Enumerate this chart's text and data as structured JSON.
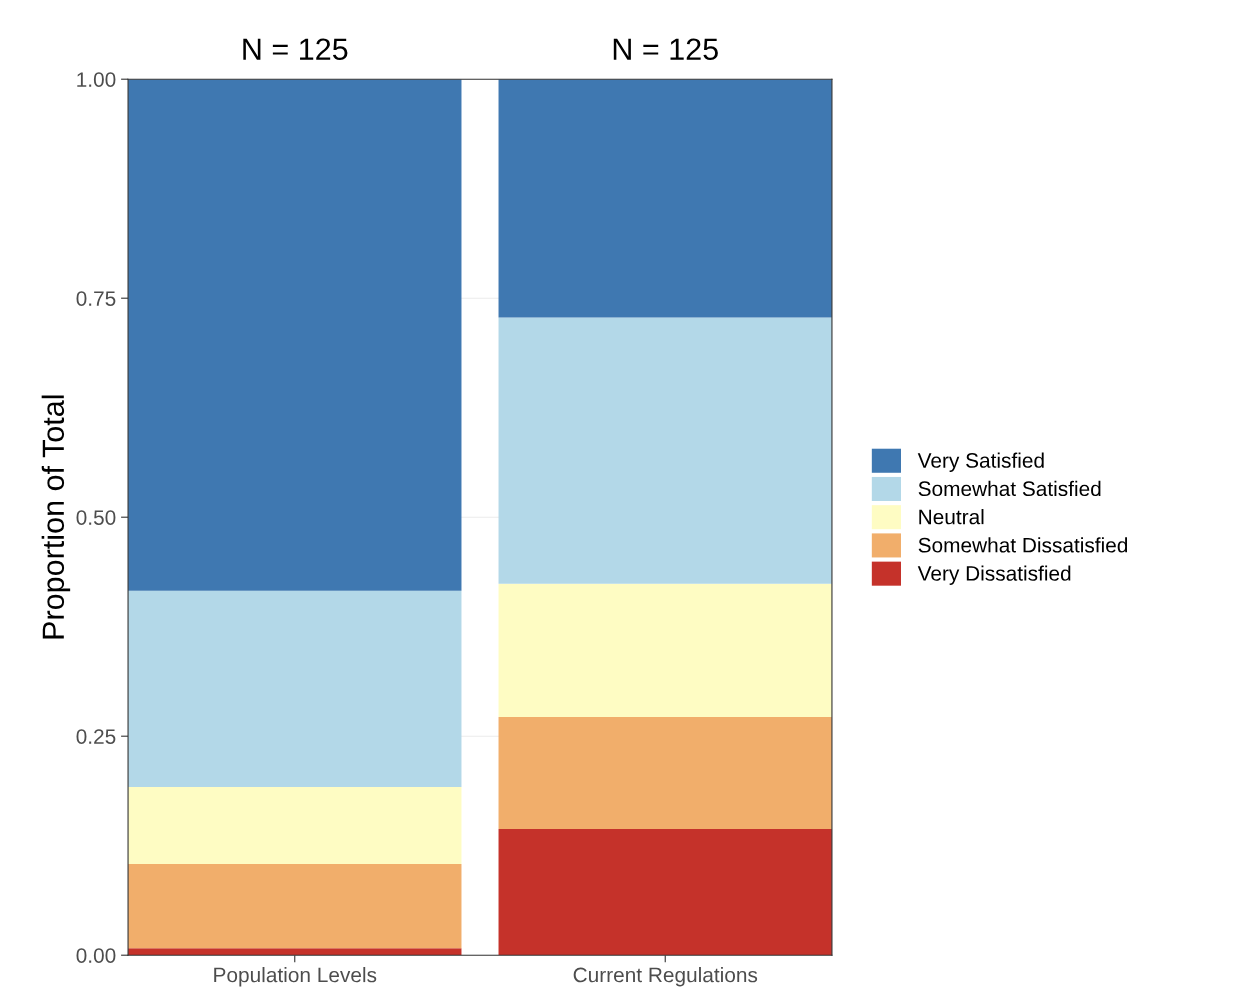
{
  "chart_data": {
    "type": "bar",
    "stacked": true,
    "ylabel": "Proportion of Total",
    "categories": [
      "Population Levels",
      "Current Regulations"
    ],
    "series": [
      {
        "name": "Very Dissatisfied",
        "color": "#c5322a",
        "values": [
          0.008,
          0.144
        ]
      },
      {
        "name": "Somewhat Dissatisfied",
        "color": "#f1ae6b",
        "values": [
          0.096,
          0.128
        ]
      },
      {
        "name": "Neutral",
        "color": "#fefcc3",
        "values": [
          0.088,
          0.152
        ]
      },
      {
        "name": "Somewhat Satisfied",
        "color": "#b3d8e8",
        "values": [
          0.224,
          0.304
        ]
      },
      {
        "name": "Very Satisfied",
        "color": "#3f78b1",
        "values": [
          0.584,
          0.272
        ]
      }
    ],
    "annotations": [
      "N = 125",
      "N = 125"
    ],
    "ylim": [
      0,
      1
    ],
    "yticks": [
      {
        "value": 0,
        "label": "0.00"
      },
      {
        "value": 0.25,
        "label": "0.25"
      },
      {
        "value": 0.5,
        "label": "0.50"
      },
      {
        "value": 0.75,
        "label": "0.75"
      },
      {
        "value": 1,
        "label": "1.00"
      }
    ],
    "grid": "y",
    "legend": "right"
  }
}
